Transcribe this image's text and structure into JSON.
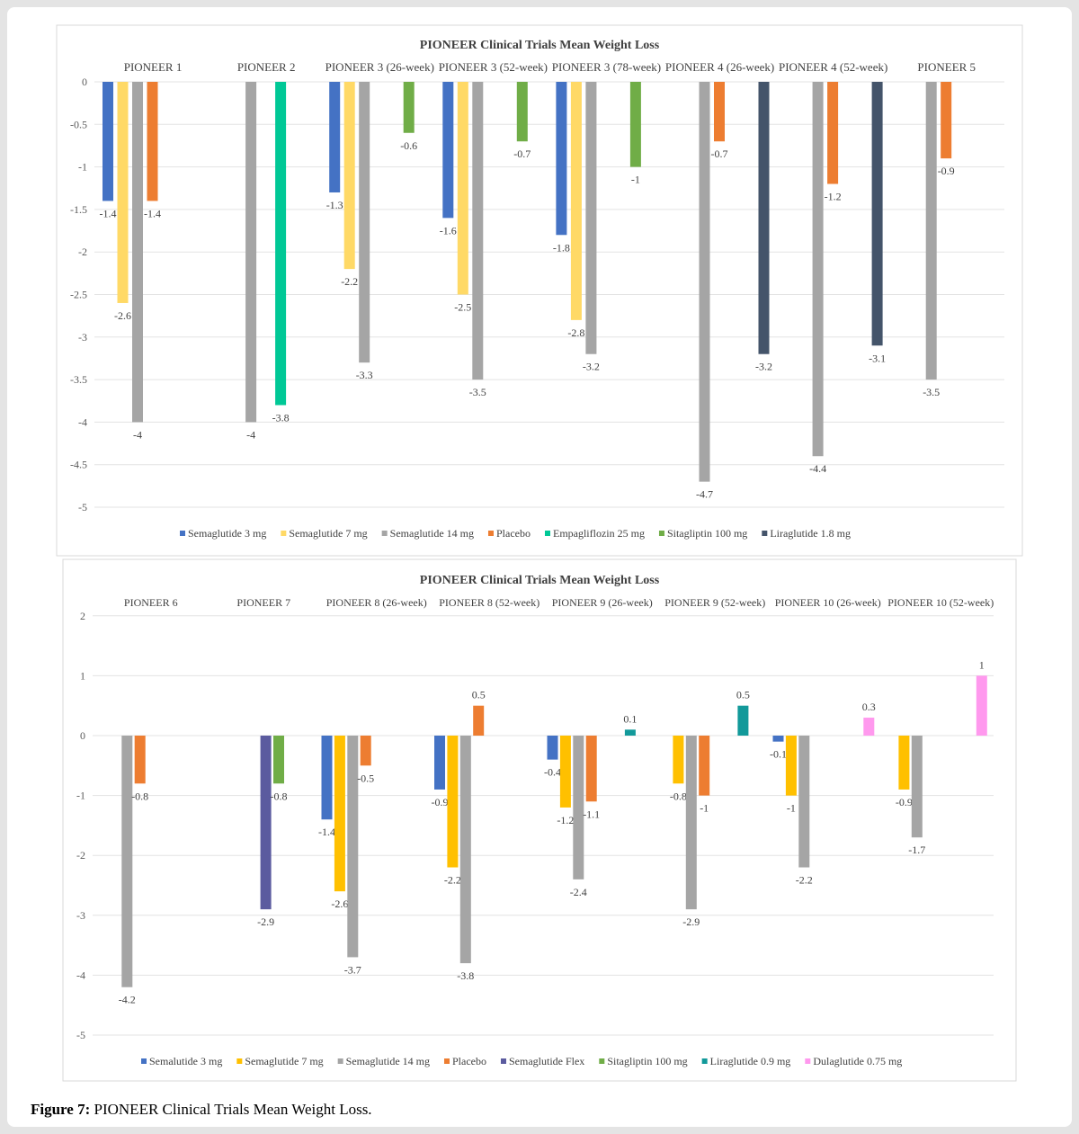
{
  "caption": {
    "label": "Figure 7:",
    "text": " PIONEER Clinical Trials Mean Weight Loss."
  },
  "chart_data": [
    {
      "type": "bar",
      "title": "PIONEER Clinical Trials Mean Weight Loss",
      "ylim": [
        -5,
        0
      ],
      "yticks": [
        0,
        -0.5,
        -1,
        -1.5,
        -2,
        -2.5,
        -3,
        -3.5,
        -4,
        -4.5,
        -5
      ],
      "legend_position": "bottom",
      "series": [
        {
          "name": "Semaglutide 3 mg",
          "color": "#4472c4"
        },
        {
          "name": "Semaglutide 7 mg",
          "color": "#ffd966"
        },
        {
          "name": "Semaglutide 14 mg",
          "color": "#a5a5a5"
        },
        {
          "name": "Placebo",
          "color": "#ed7d31"
        },
        {
          "name": "Empagliflozin 25 mg",
          "color": "#00c896"
        },
        {
          "name": "Sitagliptin 100 mg",
          "color": "#70ad47"
        },
        {
          "name": "Liraglutide 1.8 mg",
          "color": "#44546a"
        }
      ],
      "categories": [
        {
          "name": "PIONEER 1",
          "values": [
            [
              0,
              -1.4
            ],
            [
              1,
              -2.6
            ],
            [
              2,
              -4
            ],
            [
              3,
              -1.4
            ]
          ]
        },
        {
          "name": "PIONEER 2",
          "values": [
            [
              2,
              -4
            ],
            [
              4,
              -3.8
            ]
          ]
        },
        {
          "name": "PIONEER 3 (26-week)",
          "values": [
            [
              0,
              -1.3
            ],
            [
              1,
              -2.2
            ],
            [
              2,
              -3.3
            ],
            [
              5,
              -0.6
            ]
          ]
        },
        {
          "name": "PIONEER 3 (52-week)",
          "values": [
            [
              0,
              -1.6
            ],
            [
              1,
              -2.5
            ],
            [
              2,
              -3.5
            ],
            [
              5,
              -0.7
            ]
          ]
        },
        {
          "name": "PIONEER 3 (78-week)",
          "values": [
            [
              0,
              -1.8
            ],
            [
              1,
              -2.8
            ],
            [
              2,
              -3.2
            ],
            [
              5,
              -1
            ]
          ]
        },
        {
          "name": "PIONEER 4 (26-week)",
          "values": [
            [
              2,
              -4.7
            ],
            [
              3,
              -0.7
            ],
            [
              6,
              -3.2
            ]
          ]
        },
        {
          "name": "PIONEER 4 (52-week)",
          "values": [
            [
              2,
              -4.4
            ],
            [
              3,
              -1.2
            ],
            [
              6,
              -3.1
            ]
          ]
        },
        {
          "name": "PIONEER 5",
          "values": [
            [
              2,
              -3.5
            ],
            [
              3,
              -0.9
            ]
          ]
        }
      ]
    },
    {
      "type": "bar",
      "title": "PIONEER Clinical Trials Mean Weight Loss",
      "ylim": [
        -5,
        2
      ],
      "yticks": [
        2,
        1,
        0,
        -1,
        -2,
        -3,
        -4,
        -5
      ],
      "legend_position": "bottom",
      "series": [
        {
          "name": "Semalutide 3 mg",
          "color": "#4472c4"
        },
        {
          "name": "Semaglutide 7 mg",
          "color": "#ffc000"
        },
        {
          "name": "Semaglutide 14 mg",
          "color": "#a5a5a5"
        },
        {
          "name": "Placebo",
          "color": "#ed7d31"
        },
        {
          "name": "Semaglutide Flex",
          "color": "#5b5b9f"
        },
        {
          "name": "Sitagliptin 100 mg",
          "color": "#70ad47"
        },
        {
          "name": "Liraglutide 0.9 mg",
          "color": "#12999a"
        },
        {
          "name": "Dulaglutide 0.75 mg",
          "color": "#ff99ee"
        }
      ],
      "categories": [
        {
          "name": "PIONEER 6",
          "values": [
            [
              2,
              -4.2
            ],
            [
              3,
              -0.8
            ]
          ]
        },
        {
          "name": "PIONEER 7",
          "values": [
            [
              4,
              -2.9
            ],
            [
              5,
              -0.8
            ]
          ]
        },
        {
          "name": "PIONEER 8 (26-week)",
          "values": [
            [
              0,
              -1.4
            ],
            [
              1,
              -2.6
            ],
            [
              2,
              -3.7
            ],
            [
              3,
              -0.5
            ]
          ]
        },
        {
          "name": "PIONEER 8 (52-week)",
          "values": [
            [
              0,
              -0.9
            ],
            [
              1,
              -2.2
            ],
            [
              2,
              -3.8
            ],
            [
              3,
              0.5
            ]
          ]
        },
        {
          "name": "PIONEER 9 (26-week)",
          "values": [
            [
              0,
              -0.4
            ],
            [
              1,
              -1.2
            ],
            [
              2,
              -2.4
            ],
            [
              3,
              -1.1
            ],
            [
              6,
              0.1
            ]
          ]
        },
        {
          "name": "PIONEER 9 (52-week)",
          "values": [
            [
              1,
              -0.8
            ],
            [
              2,
              -2.9
            ],
            [
              3,
              -1
            ],
            [
              6,
              0.5
            ]
          ]
        },
        {
          "name": "PIONEER 10 (26-week)",
          "values": [
            [
              0,
              -0.1
            ],
            [
              1,
              -1
            ],
            [
              2,
              -2.2
            ],
            [
              7,
              0.3
            ]
          ]
        },
        {
          "name": "PIONEER 10 (52-week)",
          "values": [
            [
              1,
              -0.9
            ],
            [
              2,
              -1.7
            ],
            [
              7,
              1
            ]
          ]
        }
      ]
    }
  ]
}
